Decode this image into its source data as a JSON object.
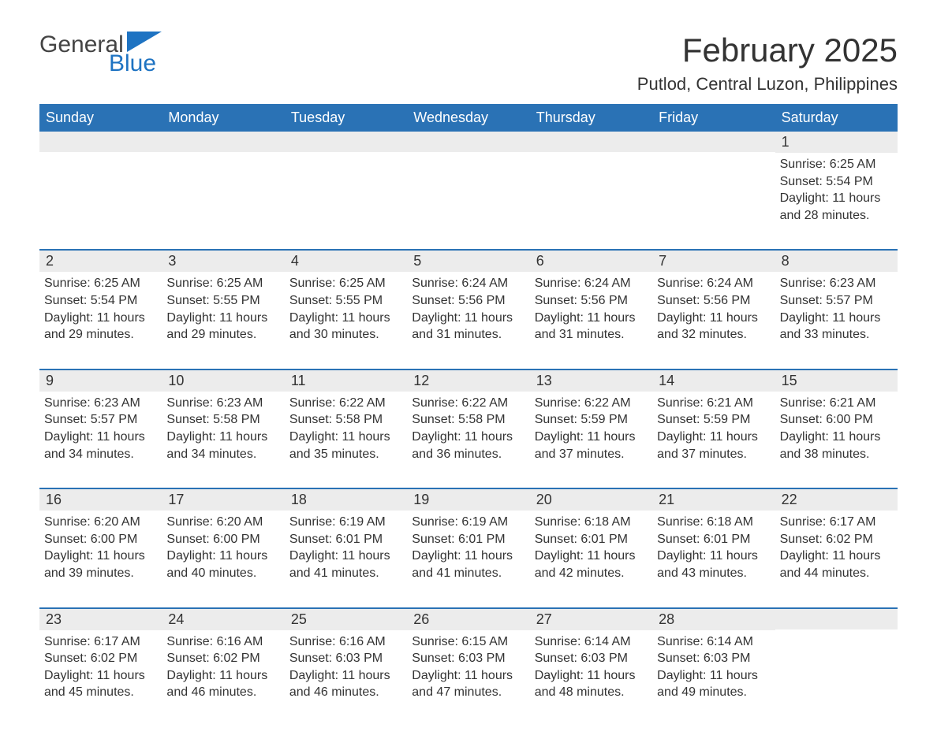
{
  "logo": {
    "general": "General",
    "blue": "Blue",
    "flag_color": "#1e73c2"
  },
  "header": {
    "title": "February 2025",
    "location": "Putlod, Central Luzon, Philippines"
  },
  "colors": {
    "header_bg": "#2a72b5",
    "header_text": "#ffffff",
    "band_bg": "#ececec",
    "rule": "#2a72b5",
    "text": "#333333",
    "page_bg": "#ffffff"
  },
  "weekdays": [
    "Sunday",
    "Monday",
    "Tuesday",
    "Wednesday",
    "Thursday",
    "Friday",
    "Saturday"
  ],
  "first_weekday_index": 6,
  "days": [
    {
      "n": 1,
      "sunrise": "6:25 AM",
      "sunset": "5:54 PM",
      "daylight": "11 hours and 28 minutes."
    },
    {
      "n": 2,
      "sunrise": "6:25 AM",
      "sunset": "5:54 PM",
      "daylight": "11 hours and 29 minutes."
    },
    {
      "n": 3,
      "sunrise": "6:25 AM",
      "sunset": "5:55 PM",
      "daylight": "11 hours and 29 minutes."
    },
    {
      "n": 4,
      "sunrise": "6:25 AM",
      "sunset": "5:55 PM",
      "daylight": "11 hours and 30 minutes."
    },
    {
      "n": 5,
      "sunrise": "6:24 AM",
      "sunset": "5:56 PM",
      "daylight": "11 hours and 31 minutes."
    },
    {
      "n": 6,
      "sunrise": "6:24 AM",
      "sunset": "5:56 PM",
      "daylight": "11 hours and 31 minutes."
    },
    {
      "n": 7,
      "sunrise": "6:24 AM",
      "sunset": "5:56 PM",
      "daylight": "11 hours and 32 minutes."
    },
    {
      "n": 8,
      "sunrise": "6:23 AM",
      "sunset": "5:57 PM",
      "daylight": "11 hours and 33 minutes."
    },
    {
      "n": 9,
      "sunrise": "6:23 AM",
      "sunset": "5:57 PM",
      "daylight": "11 hours and 34 minutes."
    },
    {
      "n": 10,
      "sunrise": "6:23 AM",
      "sunset": "5:58 PM",
      "daylight": "11 hours and 34 minutes."
    },
    {
      "n": 11,
      "sunrise": "6:22 AM",
      "sunset": "5:58 PM",
      "daylight": "11 hours and 35 minutes."
    },
    {
      "n": 12,
      "sunrise": "6:22 AM",
      "sunset": "5:58 PM",
      "daylight": "11 hours and 36 minutes."
    },
    {
      "n": 13,
      "sunrise": "6:22 AM",
      "sunset": "5:59 PM",
      "daylight": "11 hours and 37 minutes."
    },
    {
      "n": 14,
      "sunrise": "6:21 AM",
      "sunset": "5:59 PM",
      "daylight": "11 hours and 37 minutes."
    },
    {
      "n": 15,
      "sunrise": "6:21 AM",
      "sunset": "6:00 PM",
      "daylight": "11 hours and 38 minutes."
    },
    {
      "n": 16,
      "sunrise": "6:20 AM",
      "sunset": "6:00 PM",
      "daylight": "11 hours and 39 minutes."
    },
    {
      "n": 17,
      "sunrise": "6:20 AM",
      "sunset": "6:00 PM",
      "daylight": "11 hours and 40 minutes."
    },
    {
      "n": 18,
      "sunrise": "6:19 AM",
      "sunset": "6:01 PM",
      "daylight": "11 hours and 41 minutes."
    },
    {
      "n": 19,
      "sunrise": "6:19 AM",
      "sunset": "6:01 PM",
      "daylight": "11 hours and 41 minutes."
    },
    {
      "n": 20,
      "sunrise": "6:18 AM",
      "sunset": "6:01 PM",
      "daylight": "11 hours and 42 minutes."
    },
    {
      "n": 21,
      "sunrise": "6:18 AM",
      "sunset": "6:01 PM",
      "daylight": "11 hours and 43 minutes."
    },
    {
      "n": 22,
      "sunrise": "6:17 AM",
      "sunset": "6:02 PM",
      "daylight": "11 hours and 44 minutes."
    },
    {
      "n": 23,
      "sunrise": "6:17 AM",
      "sunset": "6:02 PM",
      "daylight": "11 hours and 45 minutes."
    },
    {
      "n": 24,
      "sunrise": "6:16 AM",
      "sunset": "6:02 PM",
      "daylight": "11 hours and 46 minutes."
    },
    {
      "n": 25,
      "sunrise": "6:16 AM",
      "sunset": "6:03 PM",
      "daylight": "11 hours and 46 minutes."
    },
    {
      "n": 26,
      "sunrise": "6:15 AM",
      "sunset": "6:03 PM",
      "daylight": "11 hours and 47 minutes."
    },
    {
      "n": 27,
      "sunrise": "6:14 AM",
      "sunset": "6:03 PM",
      "daylight": "11 hours and 48 minutes."
    },
    {
      "n": 28,
      "sunrise": "6:14 AM",
      "sunset": "6:03 PM",
      "daylight": "11 hours and 49 minutes."
    }
  ],
  "labels": {
    "sunrise": "Sunrise: ",
    "sunset": "Sunset: ",
    "daylight": "Daylight: "
  }
}
